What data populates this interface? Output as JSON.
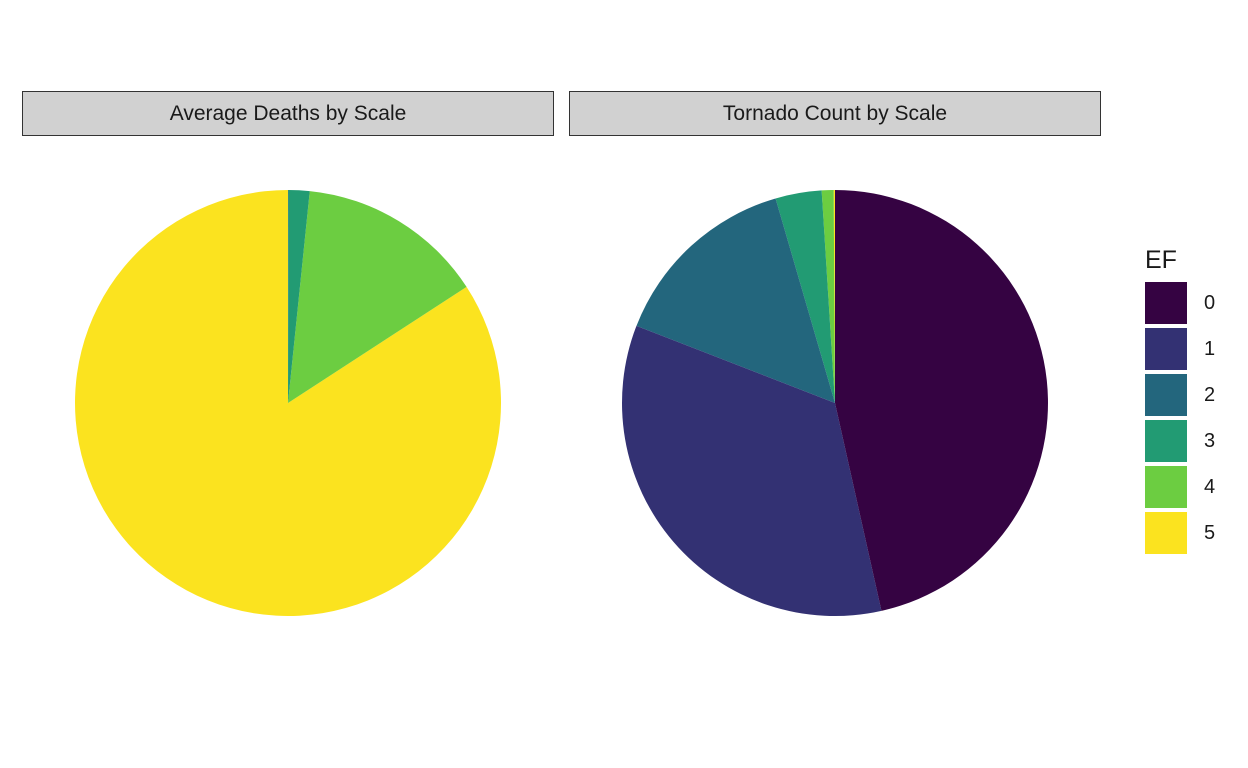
{
  "chart_data": [
    {
      "type": "pie",
      "title": "Average Deaths by Scale",
      "categories": [
        "0",
        "1",
        "2",
        "3",
        "4",
        "5"
      ],
      "values": [
        0.0,
        0.0,
        0.03,
        1.6,
        14.2,
        84.2
      ]
    },
    {
      "type": "pie",
      "title": "Tornado Count by Scale",
      "categories": [
        "0",
        "1",
        "2",
        "3",
        "4",
        "5"
      ],
      "values": [
        46.5,
        34.4,
        14.6,
        3.5,
        0.9,
        0.1
      ]
    }
  ],
  "legend": {
    "title": "EF",
    "placement": "right",
    "items": [
      {
        "label": "0",
        "color": "#350342"
      },
      {
        "label": "1",
        "color": "#333173"
      },
      {
        "label": "2",
        "color": "#23667d"
      },
      {
        "label": "3",
        "color": "#229b73"
      },
      {
        "label": "4",
        "color": "#6ccd41"
      },
      {
        "label": "5",
        "color": "#fbe31f"
      }
    ]
  }
}
